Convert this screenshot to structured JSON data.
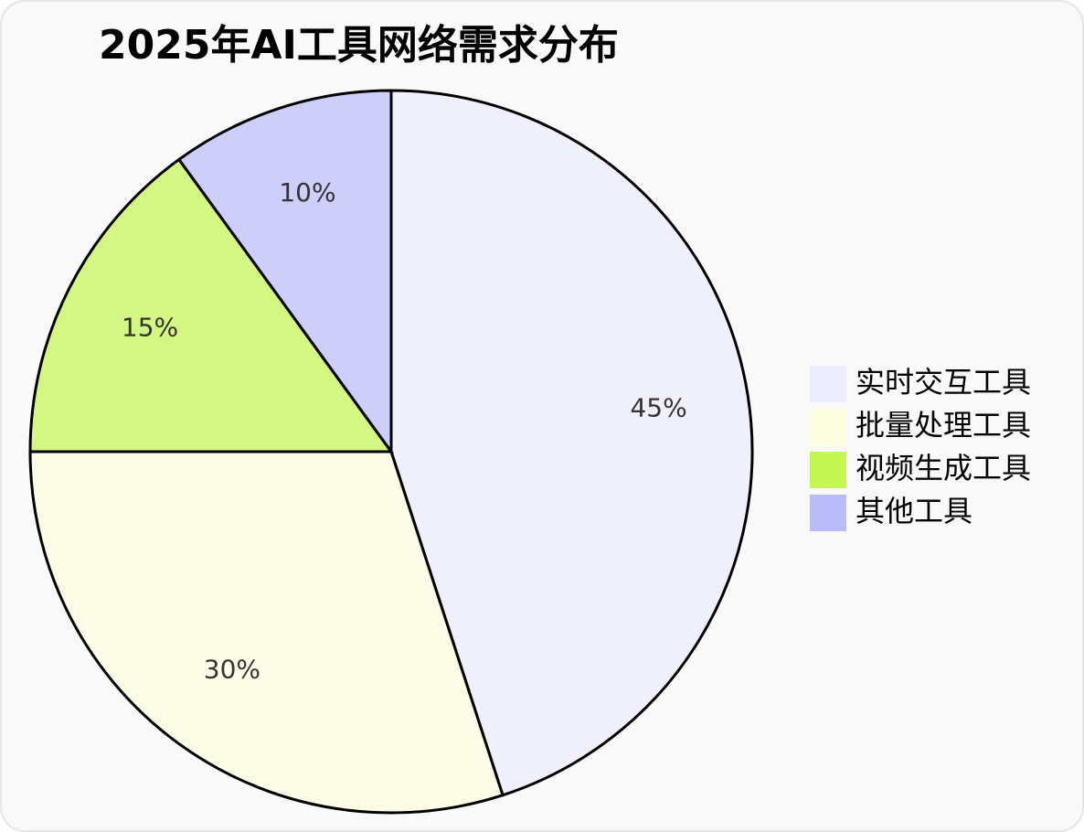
{
  "chart_data": {
    "type": "pie",
    "title": "2025年AI工具网络需求分布",
    "categories": [
      "实时交互工具",
      "批量处理工具",
      "视频生成工具",
      "其他工具"
    ],
    "values": [
      45,
      30,
      15,
      10
    ],
    "value_labels": [
      "45%",
      "30%",
      "15%",
      "10%"
    ],
    "colors": [
      "#ececfe",
      "#fdfde0",
      "#c4f752",
      "#babcfa"
    ],
    "legend": "right"
  }
}
